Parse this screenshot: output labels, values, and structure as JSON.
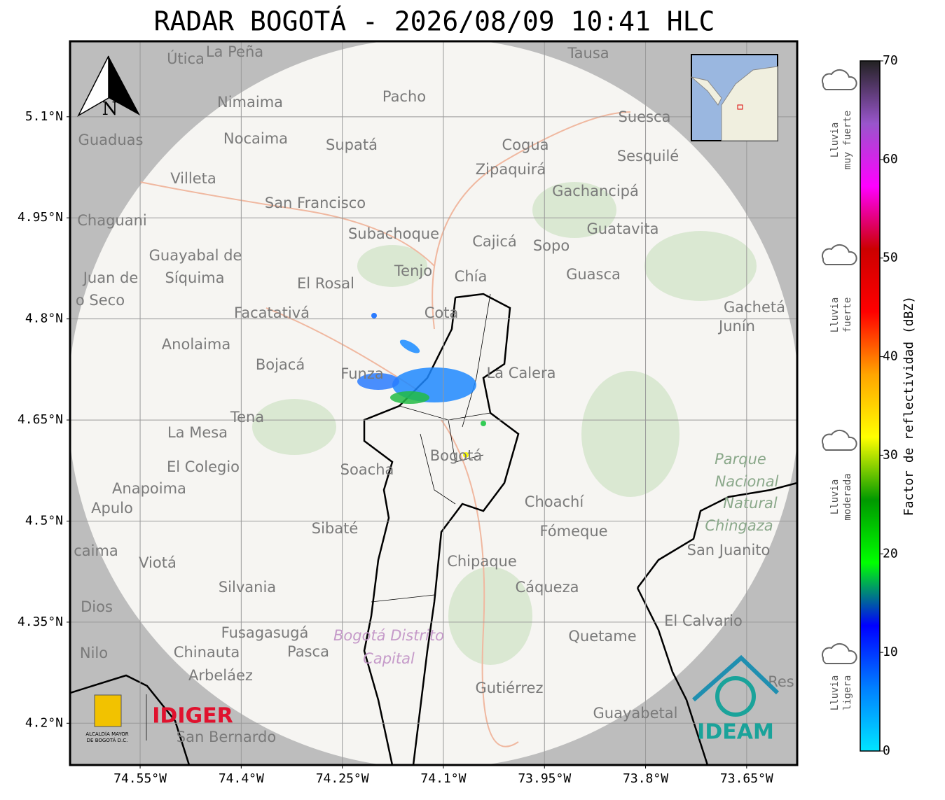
{
  "title": "RADAR BOGOTÁ - 2026/08/09 10:41 HLC",
  "map": {
    "xlim": [
      -74.654,
      -73.575
    ],
    "ylim": [
      4.138,
      5.212
    ],
    "xticks": [
      {
        "value": -74.55,
        "label": "74.55°W"
      },
      {
        "value": -74.4,
        "label": "74.4°W"
      },
      {
        "value": -74.25,
        "label": "74.25°W"
      },
      {
        "value": -74.1,
        "label": "74.1°W"
      },
      {
        "value": -73.95,
        "label": "73.95°W"
      },
      {
        "value": -73.8,
        "label": "73.8°W"
      },
      {
        "value": -73.65,
        "label": "73.65°W"
      }
    ],
    "yticks": [
      {
        "value": 5.1,
        "label": "5.1°N"
      },
      {
        "value": 4.95,
        "label": "4.95°N"
      },
      {
        "value": 4.8,
        "label": "4.8°N"
      },
      {
        "value": 4.65,
        "label": "4.65°N"
      },
      {
        "value": 4.5,
        "label": "4.5°N"
      },
      {
        "value": 4.35,
        "label": "4.35°N"
      },
      {
        "value": 4.2,
        "label": "4.2°N"
      }
    ],
    "north": "N",
    "places": [
      "Útica",
      "La Peña",
      "Tausa",
      "Nimaima",
      "Pacho",
      "Guaduas",
      "Nocaima",
      "Supatá",
      "Cogua",
      "Suesca",
      "Sesquilé",
      "Zipaquirá",
      "Villeta",
      "Gachancipá",
      "San Francisco",
      "Chaguani",
      "Guatavita",
      "Subachoque",
      "Cajicá",
      "Sopo",
      "Guayabal de",
      "Síquima",
      "Tenjo",
      "Chía",
      "Guasca",
      "Juan de",
      "El Rosal",
      "o Seco",
      "Facatativá",
      "Cota",
      "Gachetá",
      "Junín",
      "Anolaima",
      "Bojacá",
      "Funza",
      "La Calera",
      "Tena",
      "La Mesa",
      "Bogotá",
      "Soacha",
      "El Colegio",
      "Parque",
      "Nacional",
      "Natural",
      "Chingaza",
      "Anapoima",
      "Apulo",
      "Choachí",
      "Sibaté",
      "Fómeque",
      "San Juanito",
      "caima",
      "Viotá",
      "Chipaque",
      "Silvania",
      "Cáqueza",
      "Dios",
      "El Calvario",
      "Fusagasugá",
      "Quetame",
      "Bogotá Distrito",
      "Capital",
      "Nilo",
      "Chinauta",
      "Pasca",
      "Arbeláez",
      "Gutiérrez",
      "Res",
      "Guayabetal",
      "San Bernardo"
    ]
  },
  "logos": {
    "alcaldia": [
      "ALCALDÍA MAYOR",
      "DE BOGOTÁ D.C."
    ],
    "idiger": "IDIGER",
    "ideam": "IDEAM"
  },
  "colorbar": {
    "label": "Factor de reflectividad (dBZ)",
    "lim": [
      0,
      70
    ],
    "ticks": [
      0,
      10,
      20,
      30,
      40,
      50,
      60,
      70
    ],
    "colors": [
      "#00e5ff",
      "#0080ff",
      "#0000ff",
      "#00ff00",
      "#009900",
      "#ffff00",
      "#ffa500",
      "#ff0000",
      "#cc0000",
      "#ff00ff",
      "#9955cc",
      "#222222"
    ]
  },
  "rain_levels": [
    [
      "Lluvia",
      "muy fuerte"
    ],
    [
      "Lluvia",
      "fuerte"
    ],
    [
      "Lluvia",
      "moderada"
    ],
    [
      "Lluvia",
      "ligera"
    ]
  ]
}
